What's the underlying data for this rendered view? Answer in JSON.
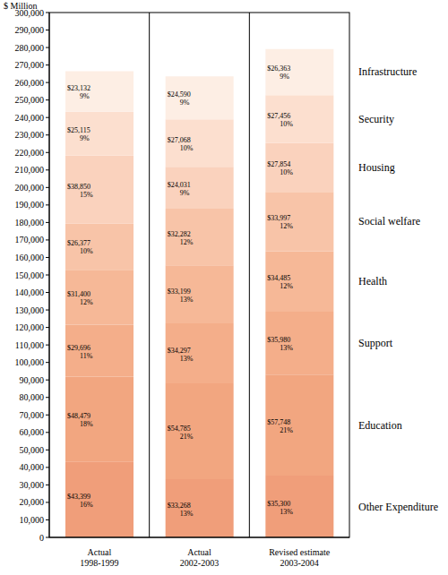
{
  "chart_data": {
    "type": "bar",
    "stacked": true,
    "data_labels": true,
    "legend": "right",
    "grid": false,
    "y_label": "$ Million",
    "categories": [
      "Actual\n1998-1999",
      "Actual\n2002-2003",
      "Revised estimate\n2003-2004"
    ],
    "ylim": [
      0,
      300000
    ],
    "yticks": [
      {
        "value": 0,
        "label": "0"
      },
      {
        "value": 10000,
        "label": "10,000"
      },
      {
        "value": 20000,
        "label": "20,000"
      },
      {
        "value": 30000,
        "label": "30,000"
      },
      {
        "value": 40000,
        "label": "40,000"
      },
      {
        "value": 50000,
        "label": "50,000"
      },
      {
        "value": 60000,
        "label": "60,000"
      },
      {
        "value": 70000,
        "label": "70,000"
      },
      {
        "value": 80000,
        "label": "80,000"
      },
      {
        "value": 90000,
        "label": "90,000"
      },
      {
        "value": 100000,
        "label": "100,000"
      },
      {
        "value": 110000,
        "label": "110,000"
      },
      {
        "value": 120000,
        "label": "120,000"
      },
      {
        "value": 130000,
        "label": "130,000"
      },
      {
        "value": 140000,
        "label": "140,000"
      },
      {
        "value": 150000,
        "label": "150,000"
      },
      {
        "value": 160000,
        "label": "160,000"
      },
      {
        "value": 170000,
        "label": "170,000"
      },
      {
        "value": 180000,
        "label": "180,000"
      },
      {
        "value": 190000,
        "label": "190,000"
      },
      {
        "value": 200000,
        "label": "200,000"
      },
      {
        "value": 210000,
        "label": "210,000"
      },
      {
        "value": 220000,
        "label": "220,000"
      },
      {
        "value": 230000,
        "label": "230,000"
      },
      {
        "value": 240000,
        "label": "240,000"
      },
      {
        "value": 250000,
        "label": "250,000"
      },
      {
        "value": 260000,
        "label": "260,000"
      },
      {
        "value": 270000,
        "label": "270,000"
      },
      {
        "value": 280000,
        "label": "280,000"
      },
      {
        "value": 290000,
        "label": "290,000"
      },
      {
        "value": 300000,
        "label": "300,000"
      }
    ],
    "series": [
      {
        "name": "Other Expenditure",
        "color": "#f09e7a",
        "values": [
          43399,
          33268,
          35300
        ],
        "value_labels": [
          "$43,399",
          "$33,268",
          "$35,300"
        ],
        "share_labels": [
          "16%",
          "13%",
          "13%"
        ]
      },
      {
        "name": "Education",
        "color": "#f2a680",
        "values": [
          48479,
          54785,
          57748
        ],
        "value_labels": [
          "$48,479",
          "$54,785",
          "$57,748"
        ],
        "share_labels": [
          "18%",
          "21%",
          "21%"
        ]
      },
      {
        "name": "Support",
        "color": "#f4ae8a",
        "values": [
          29696,
          34297,
          35980
        ],
        "value_labels": [
          "$29,696",
          "$34,297",
          "$35,980"
        ],
        "share_labels": [
          "11%",
          "13%",
          "13%"
        ]
      },
      {
        "name": "Health",
        "color": "#f6b897",
        "values": [
          31400,
          33199,
          34485
        ],
        "value_labels": [
          "$31,400",
          "$33,199",
          "$34,485"
        ],
        "share_labels": [
          "12%",
          "13%",
          "12%"
        ]
      },
      {
        "name": "Social welfare",
        "color": "#f8c4a8",
        "values": [
          26377,
          32282,
          33997
        ],
        "value_labels": [
          "$26,377",
          "$32,282",
          "$33,997"
        ],
        "share_labels": [
          "10%",
          "12%",
          "12%"
        ]
      },
      {
        "name": "Housing",
        "color": "#fad2bd",
        "values": [
          38850,
          24031,
          27854
        ],
        "value_labels": [
          "$38,850",
          "$24,031",
          "$27,854"
        ],
        "share_labels": [
          "15%",
          "9%",
          "10%"
        ]
      },
      {
        "name": "Security",
        "color": "#fcdfcf",
        "values": [
          25115,
          27068,
          27456
        ],
        "value_labels": [
          "$25,115",
          "$27,068",
          "$27,456"
        ],
        "share_labels": [
          "9%",
          "10%",
          "10%"
        ]
      },
      {
        "name": "Infrastructure",
        "color": "#fdeee4",
        "values": [
          23132,
          24590,
          26363
        ],
        "value_labels": [
          "$23,132",
          "$24,590",
          "$26,363"
        ],
        "share_labels": [
          "9%",
          "9%",
          "9%"
        ]
      }
    ]
  }
}
